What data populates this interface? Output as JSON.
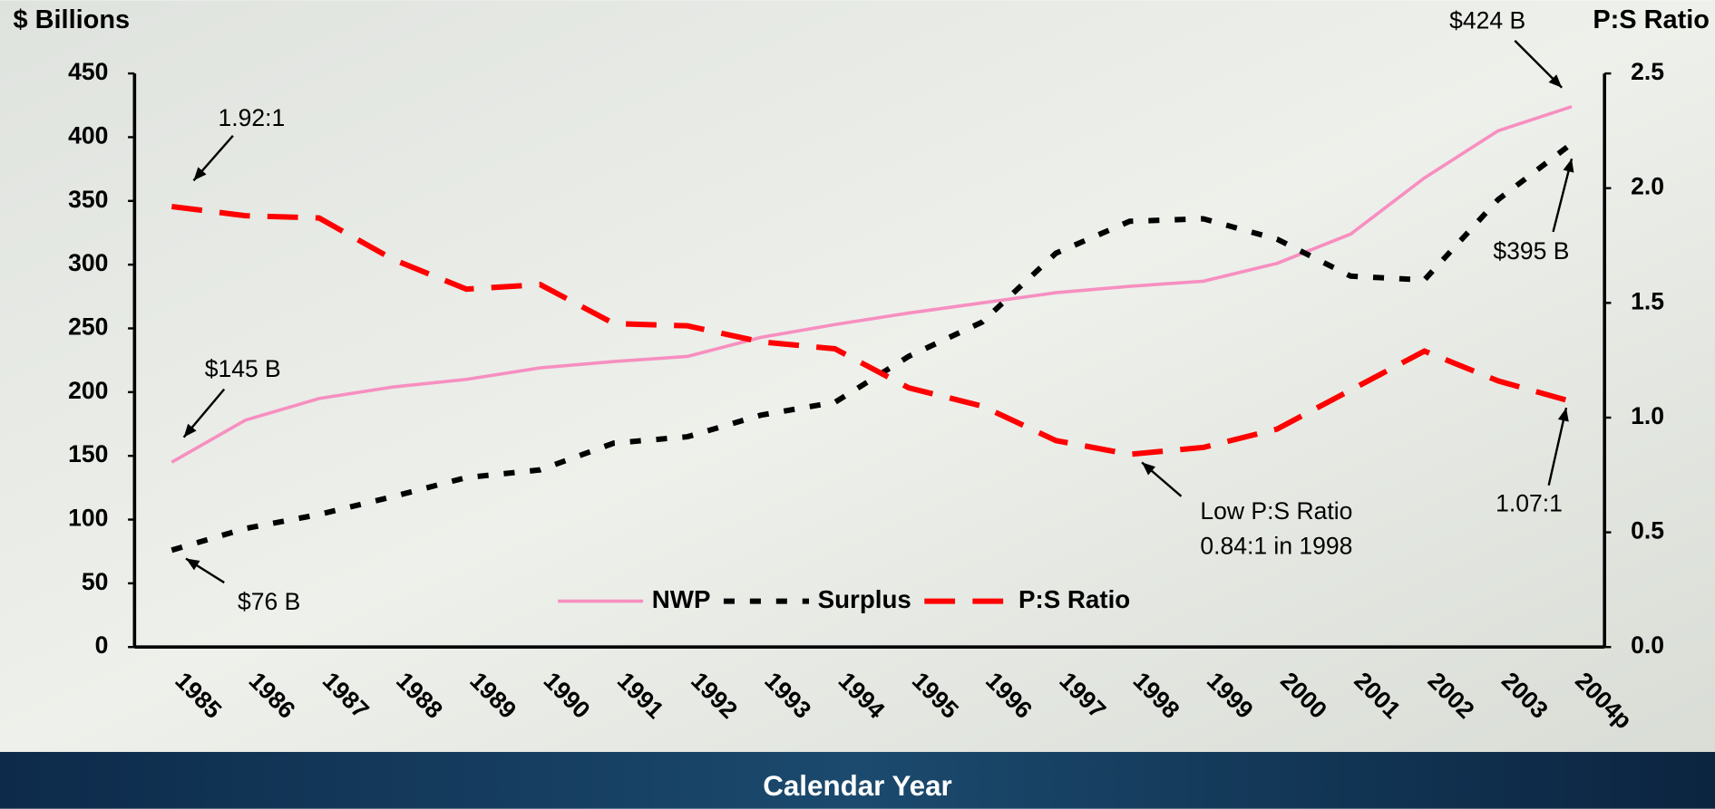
{
  "chart_data": {
    "type": "line",
    "y_label": "$ Billions",
    "y2_label": "P:S Ratio",
    "x_label": "Calendar Year",
    "categories": [
      "1985",
      "1986",
      "1987",
      "1988",
      "1989",
      "1990",
      "1991",
      "1992",
      "1993",
      "1994",
      "1995",
      "1996",
      "1997",
      "1998",
      "1999",
      "2000",
      "2001",
      "2002",
      "2003",
      "2004p"
    ],
    "series": [
      {
        "name": "NWP",
        "color": "#f78fc0",
        "values": [
          145,
          178,
          195,
          204,
          210,
          219,
          224,
          228,
          243,
          253,
          262,
          270,
          278,
          283,
          287,
          301,
          324,
          368,
          405,
          424
        ]
      },
      {
        "name": "Surplus",
        "color": "#000000",
        "values": [
          76,
          93,
          104,
          118,
          133,
          139,
          160,
          165,
          182,
          192,
          228,
          255,
          309,
          334,
          336,
          320,
          291,
          288,
          351,
          395
        ]
      },
      {
        "name": "P:S Ratio",
        "color": "#ff0000",
        "axis": "y2",
        "values": [
          1.92,
          1.88,
          1.87,
          1.69,
          1.56,
          1.58,
          1.41,
          1.4,
          1.33,
          1.3,
          1.13,
          1.05,
          0.9,
          0.84,
          0.87,
          0.95,
          1.12,
          1.29,
          1.16,
          1.07
        ]
      }
    ],
    "ylim": [
      0,
      450
    ],
    "yticks": [
      0,
      50,
      100,
      150,
      200,
      250,
      300,
      350,
      400,
      450
    ],
    "y2lim": [
      0,
      2.5
    ],
    "y2ticks": [
      {
        "value": 0,
        "label": "0.0"
      },
      0.5,
      {
        "value": 1,
        "label": "1.0"
      },
      1.5,
      {
        "value": 2,
        "label": "2.0"
      },
      2.5
    ],
    "annotations": [
      "1.92:1",
      "$145 B",
      "$76 B",
      "$424 B",
      "$395 B",
      "1.07:1",
      "Low P:S Ratio",
      "0.84:1 in 1998"
    ]
  }
}
